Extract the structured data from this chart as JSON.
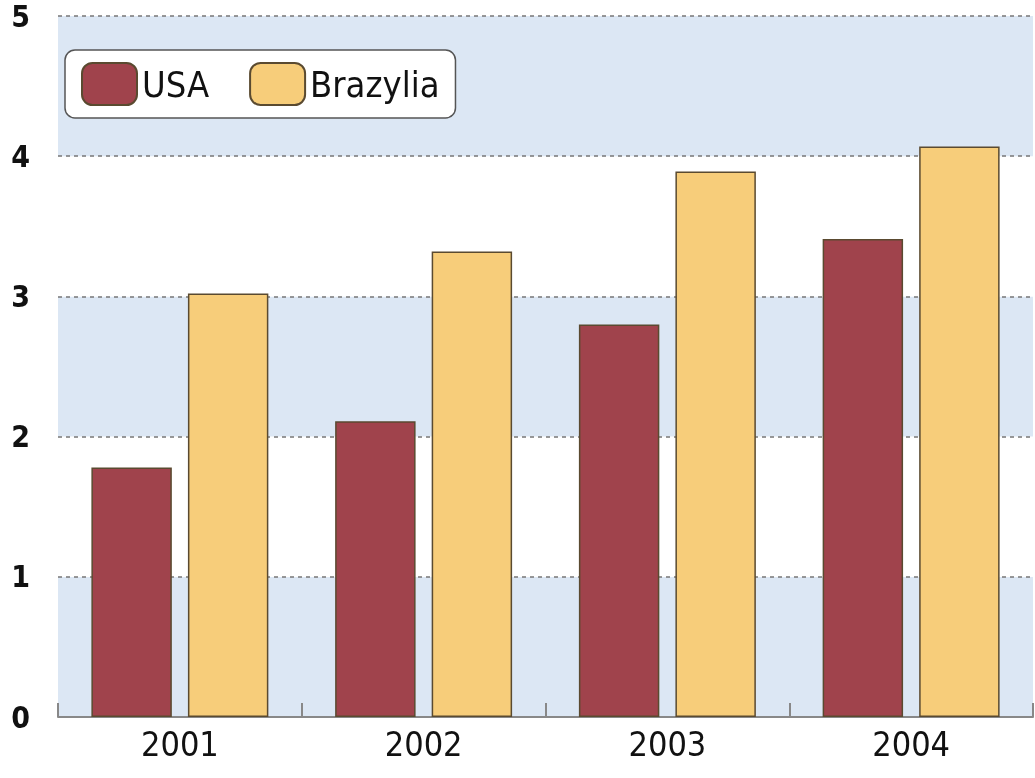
{
  "chart_data": {
    "type": "bar",
    "categories": [
      "2001",
      "2002",
      "2003",
      "2004"
    ],
    "series": [
      {
        "name": "USA",
        "color": "#a0434c",
        "values": [
          1.78,
          2.11,
          2.8,
          3.41
        ]
      },
      {
        "name": "Brazylia",
        "color": "#f7cd7a",
        "values": [
          3.02,
          3.32,
          3.89,
          4.07
        ]
      }
    ],
    "ylim": [
      0,
      5
    ],
    "yticks": [
      0,
      1,
      2,
      3,
      4,
      5
    ],
    "grid": "y",
    "legend": "top left"
  }
}
